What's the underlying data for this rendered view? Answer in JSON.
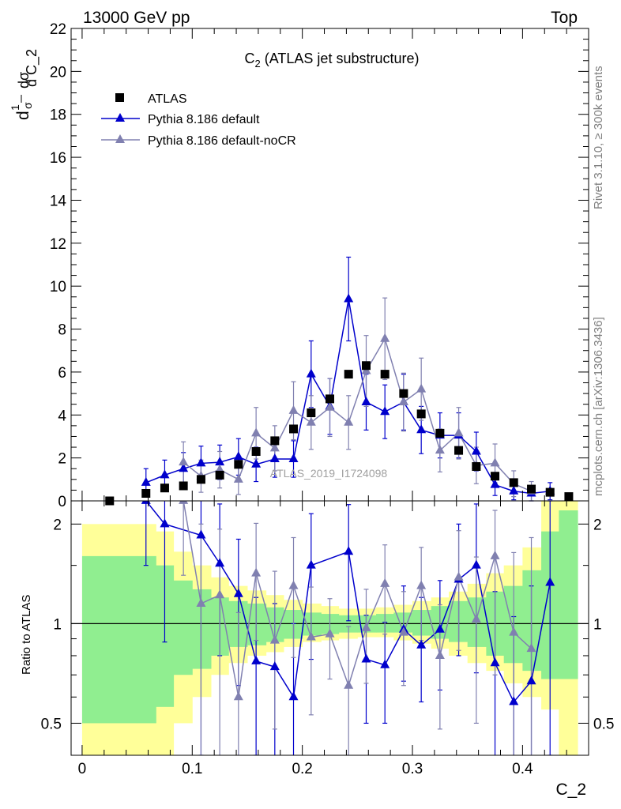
{
  "header": {
    "left": "13000 GeV pp",
    "right": "Top"
  },
  "side_labels": {
    "rivet": "Rivet 3.1.10, ≥ 300k events",
    "mcplots": "mcplots.cern.ch [arXiv:1306.3436]"
  },
  "chart_data": [
    {
      "type": "scatter",
      "panel": "main",
      "title": "C₂ (ATLAS jet substructure)",
      "title_main": "C",
      "title_sub": "2",
      "title_rest": " (ATLAS jet substructure)",
      "analysis_label": "ATLAS_2019_I1724098",
      "ylabel": "1/σ dσ/d C_2",
      "ylabel_parts": {
        "a": "d",
        "b": "1",
        "c": "σ",
        "d": "dσ",
        "e": "d C_2"
      },
      "xlabel": "C_2",
      "xlim": [
        -0.01,
        0.46
      ],
      "ylim": [
        0,
        22
      ],
      "yticks": [
        0,
        2,
        4,
        6,
        8,
        10,
        12,
        14,
        16,
        18,
        20,
        22
      ],
      "ytick_labels": [
        "0",
        "2",
        "4",
        "6",
        "8",
        "10",
        "12",
        "14",
        "16",
        "18",
        "20",
        "22"
      ],
      "legend_position": "top-left",
      "series": [
        {
          "name": "ATLAS",
          "color": "#000000",
          "marker": "square",
          "x": [
            0.025,
            0.058,
            0.075,
            0.092,
            0.108,
            0.125,
            0.142,
            0.158,
            0.175,
            0.192,
            0.208,
            0.225,
            0.242,
            0.258,
            0.275,
            0.292,
            0.308,
            0.325,
            0.342,
            0.358,
            0.375,
            0.392,
            0.408,
            0.425,
            0.442
          ],
          "y": [
            0.0,
            0.35,
            0.6,
            0.7,
            1.0,
            1.2,
            1.7,
            2.3,
            2.8,
            3.35,
            4.1,
            4.75,
            5.9,
            6.3,
            5.9,
            5.0,
            4.05,
            3.15,
            2.35,
            1.6,
            1.15,
            0.85,
            0.55,
            0.4,
            0.2
          ]
        },
        {
          "name": "Pythia 8.186 default",
          "color": "#0000cc",
          "marker": "triangle",
          "x": [
            0.058,
            0.075,
            0.092,
            0.108,
            0.125,
            0.142,
            0.158,
            0.175,
            0.192,
            0.208,
            0.225,
            0.242,
            0.258,
            0.275,
            0.292,
            0.308,
            0.325,
            0.342,
            0.358,
            0.375,
            0.392,
            0.408,
            0.425
          ],
          "y": [
            0.85,
            1.2,
            1.5,
            1.75,
            1.8,
            2.05,
            1.7,
            1.95,
            1.95,
            5.9,
            4.4,
            9.4,
            4.6,
            4.15,
            4.6,
            3.3,
            3.05,
            3.05,
            2.3,
            0.75,
            0.45,
            0.35,
            0.45
          ],
          "yerr": [
            0.65,
            0.7,
            0.75,
            0.8,
            0.8,
            0.85,
            0.8,
            0.85,
            0.85,
            1.55,
            1.3,
            1.95,
            1.3,
            1.25,
            1.3,
            1.1,
            1.05,
            1.05,
            0.9,
            0.5,
            0.4,
            0.35,
            0.4
          ]
        },
        {
          "name": "Pythia 8.186 default-noCR",
          "color": "#8080b0",
          "marker": "triangle",
          "x": [
            0.092,
            0.108,
            0.125,
            0.142,
            0.158,
            0.175,
            0.192,
            0.208,
            0.225,
            0.242,
            0.258,
            0.275,
            0.292,
            0.308,
            0.325,
            0.342,
            0.358,
            0.375,
            0.392,
            0.408
          ],
          "y": [
            1.8,
            1.15,
            1.45,
            1.0,
            3.15,
            2.45,
            4.2,
            3.65,
            4.35,
            3.65,
            6.05,
            7.55,
            4.6,
            5.2,
            2.35,
            3.15,
            1.65,
            1.75,
            0.8,
            0.45
          ],
          "yerr": [
            0.95,
            0.75,
            0.85,
            0.7,
            1.2,
            1.05,
            1.35,
            1.25,
            1.35,
            1.25,
            1.65,
            1.9,
            1.35,
            1.45,
            1.0,
            1.2,
            0.85,
            0.9,
            0.6,
            0.45
          ]
        }
      ]
    },
    {
      "type": "scatter",
      "panel": "ratio",
      "ylabel": "Ratio to ATLAS",
      "xlabel": "C_2",
      "xlim": [
        -0.01,
        0.46
      ],
      "ylim": [
        0.4,
        2.35
      ],
      "y_scale": "log",
      "yticks": [
        0.5,
        1,
        2
      ],
      "ytick_labels": [
        "0.5",
        "1",
        "2"
      ],
      "xticks": [
        0,
        0.1,
        0.2,
        0.3,
        0.4
      ],
      "xtick_labels": [
        "0",
        "0.1",
        "0.2",
        "0.3",
        "0.4"
      ],
      "reference_line": 1,
      "bands": {
        "edges": [
          0,
          0.05,
          0.067,
          0.083,
          0.1,
          0.117,
          0.133,
          0.15,
          0.167,
          0.183,
          0.2,
          0.217,
          0.233,
          0.25,
          0.267,
          0.283,
          0.3,
          0.317,
          0.333,
          0.35,
          0.367,
          0.383,
          0.4,
          0.417,
          0.433,
          0.45
        ],
        "inner_color": "#90ee90",
        "outer_color": "#ffff99",
        "inner_lo": [
          0.5,
          0.5,
          0.56,
          0.7,
          0.73,
          0.8,
          0.85,
          0.86,
          0.88,
          0.9,
          0.92,
          0.93,
          0.94,
          0.94,
          0.94,
          0.94,
          0.92,
          0.9,
          0.88,
          0.85,
          0.8,
          0.76,
          0.72,
          0.68,
          0.68
        ],
        "inner_hi": [
          1.6,
          1.6,
          1.5,
          1.35,
          1.27,
          1.2,
          1.17,
          1.15,
          1.12,
          1.1,
          1.08,
          1.07,
          1.06,
          1.06,
          1.07,
          1.08,
          1.1,
          1.13,
          1.17,
          1.2,
          1.25,
          1.3,
          1.45,
          1.9,
          2.2
        ],
        "outer_lo": [
          0.35,
          0.35,
          0.35,
          0.5,
          0.6,
          0.7,
          0.76,
          0.8,
          0.82,
          0.85,
          0.88,
          0.89,
          0.9,
          0.91,
          0.91,
          0.89,
          0.87,
          0.84,
          0.8,
          0.76,
          0.72,
          0.66,
          0.6,
          0.55,
          0.4
        ],
        "outer_hi": [
          2.0,
          2.0,
          1.9,
          1.65,
          1.5,
          1.38,
          1.3,
          1.26,
          1.22,
          1.18,
          1.15,
          1.13,
          1.11,
          1.11,
          1.12,
          1.14,
          1.17,
          1.2,
          1.25,
          1.32,
          1.42,
          1.5,
          1.7,
          2.4,
          2.4
        ]
      },
      "series": [
        {
          "name": "Pythia 8.186 default",
          "color": "#0000cc",
          "x": [
            0.058,
            0.075,
            0.108,
            0.125,
            0.142,
            0.158,
            0.175,
            0.192,
            0.208,
            0.242,
            0.258,
            0.275,
            0.292,
            0.308,
            0.325,
            0.342,
            0.358,
            0.375,
            0.392,
            0.408,
            0.425
          ],
          "y": [
            2.5,
            2.0,
            1.85,
            1.52,
            1.23,
            0.77,
            0.74,
            0.6,
            1.5,
            1.65,
            0.78,
            0.75,
            0.96,
            0.86,
            0.96,
            1.36,
            1.5,
            0.76,
            0.58,
            0.67,
            1.33
          ],
          "err_lo": [
            1.0,
            1.12,
            1.45,
            0.72,
            0.58,
            0.37,
            0.36,
            0.26,
            0.72,
            0.63,
            0.28,
            0.25,
            0.29,
            0.28,
            0.33,
            0.56,
            0.79,
            0.4,
            0.3,
            0.34,
            0.93
          ],
          "err_hi": [
            1.0,
            0.8,
            0.95,
            0.78,
            0.57,
            0.43,
            0.41,
            0.4,
            0.65,
            0.64,
            0.28,
            0.26,
            0.34,
            0.34,
            0.39,
            0.64,
            0.8,
            0.49,
            0.47,
            0.63,
            1.02
          ]
        },
        {
          "name": "Pythia 8.186 default-noCR",
          "color": "#8080b0",
          "x": [
            0.092,
            0.108,
            0.125,
            0.142,
            0.158,
            0.175,
            0.192,
            0.208,
            0.225,
            0.242,
            0.258,
            0.275,
            0.292,
            0.308,
            0.325,
            0.342,
            0.358,
            0.375,
            0.392,
            0.408
          ],
          "y": [
            2.4,
            1.15,
            1.22,
            0.6,
            1.42,
            0.89,
            1.3,
            0.91,
            0.93,
            0.65,
            0.97,
            1.32,
            0.94,
            1.3,
            0.8,
            1.38,
            1.03,
            1.6,
            0.94,
            0.84
          ],
          "err_lo": [
            1.0,
            0.78,
            0.85,
            0.26,
            0.53,
            0.41,
            0.51,
            0.38,
            0.25,
            0.28,
            0.31,
            0.39,
            0.29,
            0.41,
            0.32,
            0.55,
            0.53,
            0.9,
            0.55,
            0.55
          ],
          "err_hi": [
            1.0,
            0.85,
            0.71,
            0.48,
            0.59,
            0.55,
            0.52,
            0.38,
            0.26,
            0.33,
            0.3,
            0.41,
            0.31,
            0.4,
            0.34,
            0.53,
            0.56,
            0.6,
            0.7,
            0.98
          ]
        }
      ]
    }
  ]
}
